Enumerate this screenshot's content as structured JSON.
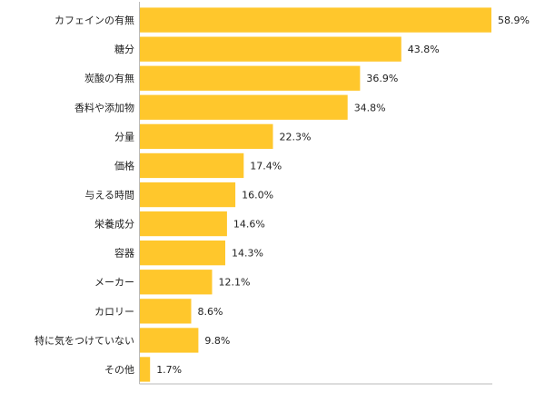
{
  "chart_data": {
    "type": "bar",
    "orientation": "horizontal",
    "categories": [
      "カフェインの有無",
      "糖分",
      "炭酸の有無",
      "香料や添加物",
      "分量",
      "価格",
      "与える時間",
      "栄養成分",
      "容器",
      "メーカー",
      "カロリー",
      "特に気をつけていない",
      "その他"
    ],
    "values": [
      58.9,
      43.8,
      36.9,
      34.8,
      22.3,
      17.4,
      16.0,
      14.6,
      14.3,
      12.1,
      8.6,
      9.8,
      1.7
    ],
    "value_labels": [
      "58.9%",
      "43.8%",
      "36.9%",
      "34.8%",
      "22.3%",
      "17.4%",
      "16.0%",
      "14.6%",
      "14.3%",
      "12.1%",
      "8.6%",
      "9.8%",
      "1.7%"
    ],
    "xlim": [
      0,
      70
    ],
    "bar_color": "#FFC72C",
    "grid": false,
    "title": "",
    "xlabel": "",
    "ylabel": ""
  }
}
